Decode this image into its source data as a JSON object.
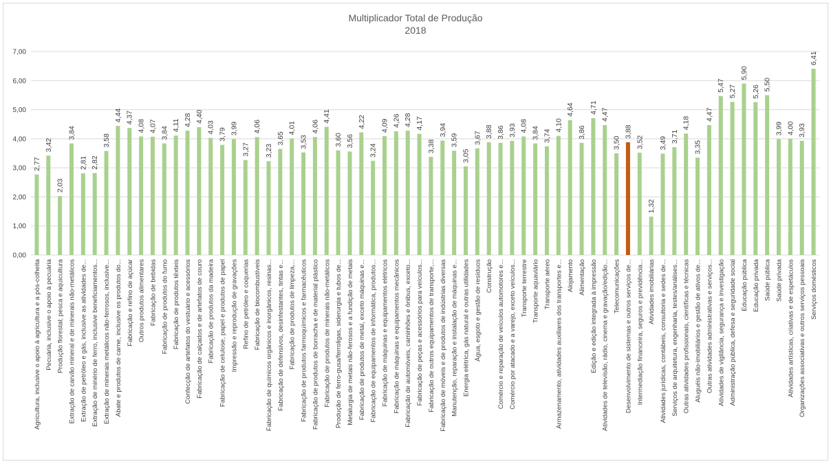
{
  "chart_data": {
    "type": "bar",
    "title": "Multiplicador Total de Produção",
    "subtitle": "2018",
    "categories": [
      "Agricultura, inclusive o apoio à agricultura e a pós-colheita",
      "Pecuária, inclusive o apoio à pecuária",
      "Produção florestal; pesca e aquicultura",
      "Extração de carvão mineral e de minerais não-metálicos",
      "Extração de petróleo e gás, inclusive as atividades de...",
      "Extração de minério de ferro, inclusive beneficiamentos...",
      "Extração de minerais metálicos não-ferrosos, inclusive...",
      "Abate e produtos de carne, inclusive os produtos do...",
      "Fabricação e refino de açúcar",
      "Outros produtos alimentares",
      "Fabricação de bebidas",
      "Fabricação de produtos do fumo",
      "Fabricação de produtos têxteis",
      "Confecção de artefatos do vestuário e acessórios",
      "Fabricação de calçados e de artefatos de couro",
      "Fabricação de produtos da madeira",
      "Fabricação de celulose, papel e produtos de papel",
      "Impressão e reprodução de gravações",
      "Refino de petróleo e coquerias",
      "Fabricação de biocombustíveis",
      "Fabricação de químicos orgânicos e inorgânicos, resinas...",
      "Fabricação de defensivos, desinfestantes, tintas e...",
      "Fabricação de produtos de limpeza,...",
      "Fabricação de produtos farmoquímicos e farmacêuticos",
      "Fabricação de produtos de borracha e de material plástico",
      "Fabricação de produtos de minerais não-metálicos",
      "Produção de ferro-gusa/ferroligas, siderurgia e tubos de...",
      "Metalurgia de metais não-ferosos e a fundição de metais",
      "Fabricação de produtos de metal, exceto máquinas e...",
      "Fabricação de equipamentos de informática, produtos...",
      "Fabricação de máquinas e equipamentos elétricos",
      "Fabricação de máquinas e equipamentos mecânicos",
      "Fabricação de automóveis, caminhões e ônibus, exceto...",
      "Fabricação de peças e acessórios para veículos...",
      "Fabricação de outros equipamentos de transporte,...",
      "Fabricação de móveis e de produtos de indústrias diversas",
      "Manutenção, reparação e instalação de máquinas e...",
      "Energia elétrica, gás natural e outras utilidades",
      "Água, esgoto e gestão de resíduos",
      "Construção",
      "Comércio e reparação de veículos automotores e...",
      "Comércio por atacado e a varejo, exceto veículos...",
      "Transporte terrestre",
      "Transporte aquaviário",
      "Transporte aéreo",
      "Armazenamento, atividades auxiliares dos transportes e...",
      "Alojamento",
      "Alimentação",
      "Edição e edição integrada à impressão",
      "Atividades de televisão, rádio, cinema e gravação/edição...",
      "Telecomunicações",
      "Desenvolvimento de sistemas e outros serviços de...",
      "Intermediação financeira, seguros e previdência...",
      "Atividades imobiliárias",
      "Atividades jurídicas, contábeis, consultoria e sedes de...",
      "Serviços de arquitetura, engenharia, testes/análises...",
      "Outras atividades profissionais, científicas e técnicas",
      "Aluguéis não-imobiliários e gestão de ativos de...",
      "Outras atividades administrativas e serviços...",
      "Atividades de vigilância, segurança e investigação",
      "Administração pública, defesa e seguridade social",
      "Educação pública",
      "Educação privada",
      "Saúde pública",
      "Saúde privada",
      "Atividades artísticas, criativas e de espetáculos",
      "Organizações associativas e outros serviços pessoais",
      "Serviços domésticos"
    ],
    "values": [
      2.77,
      3.42,
      2.03,
      3.84,
      2.81,
      2.82,
      3.58,
      4.44,
      4.37,
      4.08,
      4.07,
      3.84,
      4.11,
      4.28,
      4.4,
      4.03,
      3.79,
      3.99,
      3.27,
      4.06,
      3.23,
      3.65,
      4.01,
      3.53,
      4.06,
      4.41,
      3.6,
      3.56,
      4.22,
      3.24,
      4.09,
      4.26,
      4.28,
      4.17,
      3.38,
      3.94,
      3.59,
      3.05,
      3.67,
      3.88,
      3.86,
      3.93,
      4.08,
      3.84,
      3.74,
      4.1,
      4.64,
      3.86,
      4.71,
      4.47,
      3.5,
      3.88,
      3.52,
      1.32,
      3.49,
      3.71,
      4.18,
      3.35,
      4.47,
      5.47,
      5.27,
      5.9,
      5.26,
      5.5,
      3.99,
      4.0,
      3.93,
      6.41
    ],
    "value_labels": [
      "2,77",
      "3,42",
      "2,03",
      "3,84",
      "2,81",
      "2,82",
      "3,58",
      "4,44",
      "4,37",
      "4,08",
      "4,07",
      "3,84",
      "4,11",
      "4,28",
      "4,40",
      "4,03",
      "3,79",
      "3,99",
      "3,27",
      "4,06",
      "3,23",
      "3,65",
      "4,01",
      "3,53",
      "4,06",
      "4,41",
      "3,60",
      "3,56",
      "4,22",
      "3,24",
      "4,09",
      "4,26",
      "4,28",
      "4,17",
      "3,38",
      "3,94",
      "3,59",
      "3,05",
      "3,67",
      "3,88",
      "3,86",
      "3,93",
      "4,08",
      "3,84",
      "3,74",
      "4,10",
      "4,64",
      "3,86",
      "4,71",
      "4,47",
      "3,50",
      "3,88",
      "3,52",
      "1,32",
      "3,49",
      "3,71",
      "4,18",
      "3,35",
      "4,47",
      "5,47",
      "5,27",
      "5,90",
      "5,26",
      "5,50",
      "3,99",
      "4,00",
      "3,93",
      "6,41"
    ],
    "colors": [
      "#a9d18e",
      "#a9d18e",
      "#a9d18e",
      "#a9d18e",
      "#a9d18e",
      "#a9d18e",
      "#a9d18e",
      "#a9d18e",
      "#a9d18e",
      "#a9d18e",
      "#a9d18e",
      "#a9d18e",
      "#a9d18e",
      "#a9d18e",
      "#a9d18e",
      "#a9d18e",
      "#a9d18e",
      "#a9d18e",
      "#a9d18e",
      "#a9d18e",
      "#a9d18e",
      "#a9d18e",
      "#a9d18e",
      "#a9d18e",
      "#a9d18e",
      "#a9d18e",
      "#a9d18e",
      "#a9d18e",
      "#a9d18e",
      "#a9d18e",
      "#a9d18e",
      "#a9d18e",
      "#a9d18e",
      "#a9d18e",
      "#a9d18e",
      "#a9d18e",
      "#a9d18e",
      "#a9d18e",
      "#a9d18e",
      "#a9d18e",
      "#a9d18e",
      "#a9d18e",
      "#a9d18e",
      "#a9d18e",
      "#a9d18e",
      "#a9d18e",
      "#a9d18e",
      "#a9d18e",
      "#a9d18e",
      "#a9d18e",
      "#a9d18e",
      "#c55a11",
      "#a9d18e",
      "#a9d18e",
      "#a9d18e",
      "#a9d18e",
      "#a9d18e",
      "#a9d18e",
      "#a9d18e",
      "#a9d18e",
      "#a9d18e",
      "#a9d18e",
      "#a9d18e",
      "#a9d18e",
      "#a9d18e",
      "#a9d18e",
      "#a9d18e",
      "#a9d18e"
    ],
    "ylim": [
      0,
      7
    ],
    "yticks": [
      {
        "value": 0,
        "label": "0,00"
      },
      {
        "value": 1,
        "label": "1,00"
      },
      {
        "value": 2,
        "label": "2,00"
      },
      {
        "value": 3,
        "label": "3,00"
      },
      {
        "value": 4,
        "label": "4,00"
      },
      {
        "value": 5,
        "label": "5,00"
      },
      {
        "value": 6,
        "label": "6,00"
      },
      {
        "value": 7,
        "label": "7,00"
      }
    ],
    "grid": true
  }
}
